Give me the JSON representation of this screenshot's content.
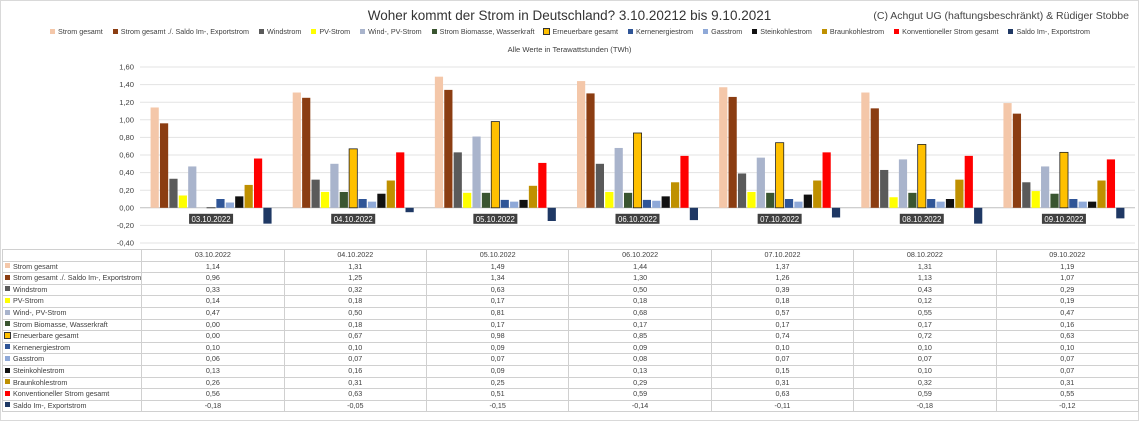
{
  "title": "Woher kommt der Strom in Deutschland? 3.10.20212 bis 9.10.2021",
  "copyright": "(C) Achgut UG (haftungsbeschränkt) & Rüdiger Stobbe",
  "subtitle": "Alle Werte in Terawattstunden (TWh)",
  "chart_data": {
    "type": "bar",
    "title": "Woher kommt der Strom in Deutschland? 3.10.20212 bis 9.10.2021",
    "subtitle": "Alle Werte in Terawattstunden (TWh)",
    "ylim": [
      -0.4,
      1.6
    ],
    "y_ticks": [
      "1,60",
      "1,40",
      "1,20",
      "1,00",
      "0,80",
      "0,60",
      "0,40",
      "0,20",
      "0,00",
      "-0,20",
      "-0,40"
    ],
    "y_tick_values": [
      1.6,
      1.4,
      1.2,
      1.0,
      0.8,
      0.6,
      0.4,
      0.2,
      0.0,
      -0.2,
      -0.4
    ],
    "grid": true,
    "legend_position": "top",
    "categories": [
      "03.10.2022",
      "04.10.2022",
      "05.10.2022",
      "06.10.2022",
      "07.10.2022",
      "08.10.2022",
      "09.10.2022"
    ],
    "series": [
      {
        "name": "Strom gesamt",
        "color": "#f4c7a9",
        "values": [
          1.14,
          1.31,
          1.49,
          1.44,
          1.37,
          1.31,
          1.19
        ]
      },
      {
        "name": "Strom gesamt ./. Saldo Im-, Exportstrom",
        "color": "#8b3d12",
        "values": [
          0.96,
          1.25,
          1.34,
          1.3,
          1.26,
          1.13,
          1.07
        ]
      },
      {
        "name": "Windstrom",
        "color": "#5a5a5a",
        "values": [
          0.33,
          0.32,
          0.63,
          0.5,
          0.39,
          0.43,
          0.29
        ]
      },
      {
        "name": "PV-Strom",
        "color": "#ffff00",
        "values": [
          0.14,
          0.18,
          0.17,
          0.18,
          0.18,
          0.12,
          0.19
        ]
      },
      {
        "name": "Wind-, PV-Strom",
        "color": "#a9b4cc",
        "values": [
          0.47,
          0.5,
          0.81,
          0.68,
          0.57,
          0.55,
          0.47
        ]
      },
      {
        "name": "Strom Biomasse, Wasserkraft",
        "color": "#3a5530",
        "values": [
          0.0,
          0.18,
          0.17,
          0.17,
          0.17,
          0.17,
          0.16
        ]
      },
      {
        "name": "Erneuerbare gesamt",
        "color": "#ffc000",
        "values": [
          0.0,
          0.67,
          0.98,
          0.85,
          0.74,
          0.72,
          0.63
        ]
      },
      {
        "name": "Kernenergiestrom",
        "color": "#2f5597",
        "values": [
          0.1,
          0.1,
          0.09,
          0.09,
          0.1,
          0.1,
          0.1
        ]
      },
      {
        "name": "Gasstrom",
        "color": "#8fa9d8",
        "values": [
          0.06,
          0.07,
          0.07,
          0.08,
          0.07,
          0.07,
          0.07
        ]
      },
      {
        "name": "Steinkohlestrom",
        "color": "#111111",
        "values": [
          0.13,
          0.16,
          0.09,
          0.13,
          0.15,
          0.1,
          0.07
        ]
      },
      {
        "name": "Braunkohlestrom",
        "color": "#bf9000",
        "values": [
          0.26,
          0.31,
          0.25,
          0.29,
          0.31,
          0.32,
          0.31
        ]
      },
      {
        "name": "Konventioneller Strom gesamt",
        "color": "#ff0000",
        "values": [
          0.56,
          0.63,
          0.51,
          0.59,
          0.63,
          0.59,
          0.55
        ]
      },
      {
        "name": "Saldo Im-, Exportstrom",
        "color": "#1f3864",
        "values": [
          -0.18,
          -0.05,
          -0.15,
          -0.14,
          -0.11,
          -0.18,
          -0.12
        ]
      }
    ]
  },
  "table": {
    "row_labels": [
      "Strom gesamt",
      "Strom gesamt ./. Saldo Im-, Exportstrom",
      "Windstrom",
      "PV-Strom",
      "Wind-, PV-Strom",
      "Strom Biomasse, Wasserkraft",
      "Erneuerbare gesamt",
      "Kernenergiestrom",
      "Gasstrom",
      "Steinkohlestrom",
      "Braunkohlestrom",
      "Konventioneller Strom gesamt",
      "Saldo Im-, Exportstrom"
    ],
    "rows": [
      [
        "1,14",
        "1,31",
        "1,49",
        "1,44",
        "1,37",
        "1,31",
        "1,19"
      ],
      [
        "0,96",
        "1,25",
        "1,34",
        "1,30",
        "1,26",
        "1,13",
        "1,07"
      ],
      [
        "0,33",
        "0,32",
        "0,63",
        "0,50",
        "0,39",
        "0,43",
        "0,29"
      ],
      [
        "0,14",
        "0,18",
        "0,17",
        "0,18",
        "0,18",
        "0,12",
        "0,19"
      ],
      [
        "0,47",
        "0,50",
        "0,81",
        "0,68",
        "0,57",
        "0,55",
        "0,47"
      ],
      [
        "0,00",
        "0,18",
        "0,17",
        "0,17",
        "0,17",
        "0,17",
        "0,16"
      ],
      [
        "0,00",
        "0,67",
        "0,98",
        "0,85",
        "0,74",
        "0,72",
        "0,63"
      ],
      [
        "0,10",
        "0,10",
        "0,09",
        "0,09",
        "0,10",
        "0,10",
        "0,10"
      ],
      [
        "0,06",
        "0,07",
        "0,07",
        "0,08",
        "0,07",
        "0,07",
        "0,07"
      ],
      [
        "0,13",
        "0,16",
        "0,09",
        "0,13",
        "0,15",
        "0,10",
        "0,07"
      ],
      [
        "0,26",
        "0,31",
        "0,25",
        "0,29",
        "0,31",
        "0,32",
        "0,31"
      ],
      [
        "0,56",
        "0,63",
        "0,51",
        "0,59",
        "0,63",
        "0,59",
        "0,55"
      ],
      [
        "-0,18",
        "-0,05",
        "-0,15",
        "-0,14",
        "-0,11",
        "-0,18",
        "-0,12"
      ]
    ]
  }
}
